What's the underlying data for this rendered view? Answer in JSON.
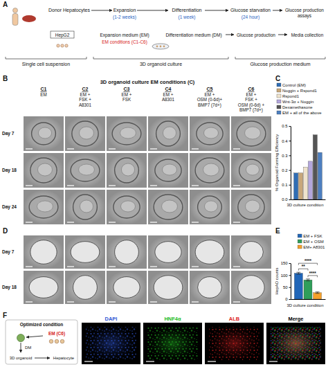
{
  "panel_labels": [
    "A",
    "B",
    "C",
    "D",
    "E",
    "F"
  ],
  "panel_a": {
    "top_row": [
      [
        "Donor Hepatocytes"
      ],
      [
        "Expansion"
      ],
      [
        "Differentiation"
      ],
      [
        "Glucose starvation"
      ],
      [
        "Glucose production",
        "assays"
      ]
    ],
    "durations": [
      "(1-2 weeks)",
      "(1 week)",
      "(24 hour)"
    ],
    "middle_row": [
      "HepG2",
      "Expansion medium (EM)",
      "Differentiation medium (DM)",
      "Glucose production",
      "Media collection"
    ],
    "em_conditions": "EM conditions (C1-C6)",
    "bottom_row": [
      "Single cell suspension",
      "3D organoid culture",
      "Glucose production medium"
    ]
  },
  "panel_b": {
    "title": "3D organoid culture EM conditions (C)",
    "conditions": [
      {
        "id": "C1",
        "lines": [
          "EM"
        ]
      },
      {
        "id": "C2",
        "lines": [
          "EM +",
          "FSK +",
          "A8301"
        ]
      },
      {
        "id": "C3",
        "lines": [
          "EM +",
          "FSK"
        ]
      },
      {
        "id": "C4",
        "lines": [
          "EM +",
          "A8301"
        ]
      },
      {
        "id": "C5",
        "lines": [
          "EM +",
          "OSM (0-6d)+",
          "BMP7 (7d+)"
        ]
      },
      {
        "id": "C6",
        "lines": [
          "EM +",
          "FSK +",
          "OSM (0-6d) +",
          "BMP7 (7d+)"
        ]
      }
    ],
    "rows": [
      "Day 7",
      "Day 18",
      "Day 24"
    ]
  },
  "panel_d": {
    "rows": [
      "Day 7",
      "Day 18"
    ]
  },
  "chart_data": [
    {
      "type": "bar",
      "ylabel": "% Organoid Forming Efficiency",
      "xlabel": "3D culture condition",
      "categories": [
        null
      ],
      "series": [
        {
          "name": "Control (EM)",
          "color": "#2f6db5",
          "values": [
            0.18
          ]
        },
        {
          "name": "Noggin + Rspond1",
          "color": "#c8a77a",
          "values": [
            0.18
          ]
        },
        {
          "name": "Rspond1",
          "color": "#efe3cc",
          "values": [
            0.22
          ]
        },
        {
          "name": "Wnt-3α + Noggin",
          "color": "#b3a6dc",
          "values": [
            0.26
          ]
        },
        {
          "name": "Dexamethasone",
          "color": "#555555",
          "values": [
            0.44
          ]
        },
        {
          "name": "EM + all of the above",
          "color": "#4d7fc0",
          "values": [
            0.32
          ]
        }
      ],
      "ylim": [
        0,
        0.5
      ],
      "yticks": [
        {
          "value": 0,
          "label": "0.0"
        },
        0.1,
        0.2,
        0.3,
        0.4,
        0.5
      ],
      "legend": "top",
      "tick_labels": "y"
    },
    {
      "type": "bar",
      "ylabel": "HepAO counts",
      "xlabel": "3D culture condition",
      "categories": [
        null
      ],
      "series": [
        {
          "name": "EM + FSK",
          "color": "#2166b8",
          "values": [
            108
          ],
          "errors": [
            4
          ]
        },
        {
          "name": "EM + OSM",
          "color": "#2f9e5a",
          "values": [
            80
          ],
          "errors": [
            4
          ]
        },
        {
          "name": "EM+ A8301",
          "color": "#f5a02a",
          "values": [
            27
          ],
          "errors": [
            3
          ]
        }
      ],
      "ylim": [
        0,
        150
      ],
      "yticks": [
        0,
        50,
        100,
        150
      ],
      "legend": "top-right",
      "tick_labels": "y",
      "annotations": [
        {
          "text": "****",
          "between": [
            "EM + FSK",
            "EM+ A8301"
          ]
        },
        {
          "text": "**",
          "between": [
            "EM + FSK",
            "EM + OSM"
          ]
        },
        {
          "text": "****",
          "between": [
            "EM + OSM",
            "EM+ A8301"
          ]
        }
      ]
    }
  ],
  "panel_f": {
    "diagram_title": "Optimized condition",
    "steps": [
      "EM (C6)",
      "DM",
      "3D organoid",
      "Hepatocyte"
    ],
    "channels": [
      {
        "name": "DAPI",
        "color": "#2f55d4"
      },
      {
        "name": "HNF4α",
        "color": "#22bb22"
      },
      {
        "name": "ALB",
        "color": "#dd2222"
      },
      {
        "name": "Merge",
        "color": "#000000"
      }
    ]
  }
}
